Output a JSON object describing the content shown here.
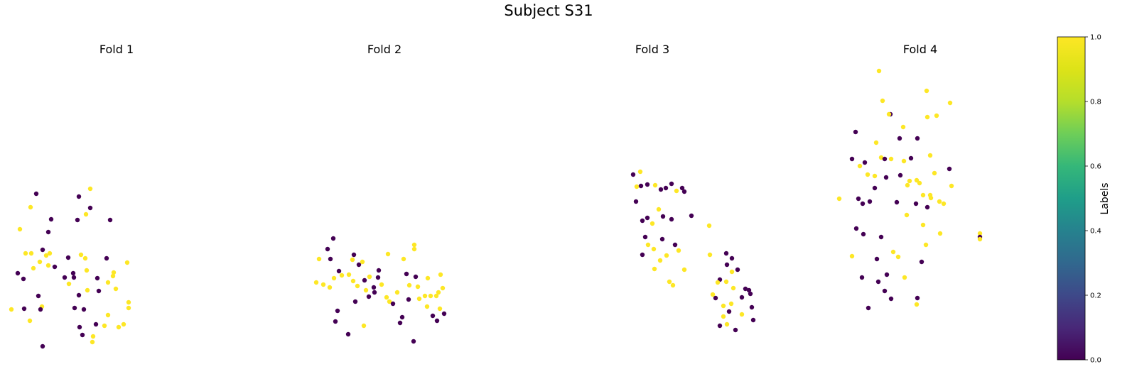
{
  "figure": {
    "title": "Subject S31"
  },
  "colors": {
    "label_0": "#440154",
    "label_1": "#fde725"
  },
  "colorbar": {
    "label": "Labels",
    "ticks": [
      "0.0",
      "0.2",
      "0.4",
      "0.6",
      "0.8",
      "1.0"
    ],
    "colormap": "viridis",
    "range": [
      0,
      1
    ]
  },
  "chart_data": [
    {
      "type": "scatter",
      "title": "Fold 1",
      "axes_visible": false,
      "x_range": [
        0,
        190
      ],
      "y_range": [
        0,
        430
      ],
      "points": [
        [
          51,
          254,
          0
        ],
        [
          43,
          235,
          1
        ],
        [
          111,
          250,
          0
        ],
        [
          127,
          261,
          1
        ],
        [
          28,
          204,
          1
        ],
        [
          72,
          218,
          0
        ],
        [
          109,
          217,
          0
        ],
        [
          121,
          225,
          1
        ],
        [
          127,
          234,
          0
        ],
        [
          155,
          217,
          0
        ],
        [
          36,
          170,
          1
        ],
        [
          44,
          170,
          1
        ],
        [
          65,
          167,
          1
        ],
        [
          70,
          170,
          1
        ],
        [
          25,
          142,
          0
        ],
        [
          33,
          134,
          0
        ],
        [
          47,
          149,
          1
        ],
        [
          56,
          158,
          1
        ],
        [
          68,
          153,
          1
        ],
        [
          77,
          151,
          0
        ],
        [
          96,
          164,
          0
        ],
        [
          103,
          142,
          0
        ],
        [
          114,
          168,
          1
        ],
        [
          122,
          146,
          1
        ],
        [
          150,
          163,
          0
        ],
        [
          160,
          143,
          1
        ],
        [
          179,
          157,
          1
        ],
        [
          54,
          110,
          0
        ],
        [
          59,
          95,
          1
        ],
        [
          34,
          92,
          0
        ],
        [
          16,
          91,
          1
        ],
        [
          42,
          75,
          1
        ],
        [
          57,
          91,
          0
        ],
        [
          105,
          93,
          0
        ],
        [
          111,
          111,
          0
        ],
        [
          118,
          91,
          0
        ],
        [
          123,
          118,
          1
        ],
        [
          139,
          117,
          0
        ],
        [
          152,
          129,
          1
        ],
        [
          163,
          120,
          1
        ],
        [
          112,
          66,
          0
        ],
        [
          116,
          55,
          0
        ],
        [
          131,
          53,
          1
        ],
        [
          135,
          70,
          0
        ],
        [
          147,
          68,
          1
        ],
        [
          152,
          83,
          1
        ],
        [
          167,
          66,
          1
        ],
        [
          174,
          70,
          1
        ],
        [
          181,
          101,
          1
        ],
        [
          181,
          93,
          1
        ],
        [
          91,
          136,
          0
        ],
        [
          97,
          127,
          1
        ],
        [
          104,
          136,
          0
        ],
        [
          137,
          135,
          0
        ],
        [
          159,
          138,
          1
        ],
        [
          68,
          200,
          0
        ],
        [
          60,
          175,
          0
        ],
        [
          120,
          163,
          1
        ],
        [
          60,
          39,
          0
        ],
        [
          130,
          45,
          1
        ]
      ]
    },
    {
      "type": "scatter",
      "title": "Fold 2",
      "axes_visible": false,
      "x_range": [
        0,
        190
      ],
      "y_range": [
        0,
        430
      ],
      "points": [
        [
          469,
          191,
          0
        ],
        [
          461,
          176,
          0
        ],
        [
          465,
          162,
          0
        ],
        [
          449,
          162,
          1
        ],
        [
          445,
          129,
          1
        ],
        [
          455,
          126,
          1
        ],
        [
          464,
          122,
          1
        ],
        [
          470,
          135,
          1
        ],
        [
          477,
          145,
          0
        ],
        [
          481,
          139,
          1
        ],
        [
          491,
          140,
          1
        ],
        [
          497,
          131,
          1
        ],
        [
          503,
          124,
          1
        ],
        [
          513,
          132,
          0
        ],
        [
          520,
          137,
          1
        ],
        [
          532,
          136,
          0
        ],
        [
          537,
          126,
          1
        ],
        [
          548,
          102,
          1
        ],
        [
          553,
          99,
          0
        ],
        [
          559,
          115,
          1
        ],
        [
          572,
          141,
          0
        ],
        [
          576,
          125,
          1
        ],
        [
          585,
          137,
          0
        ],
        [
          588,
          123,
          1
        ],
        [
          598,
          110,
          1
        ],
        [
          601,
          95,
          1
        ],
        [
          609,
          82,
          0
        ],
        [
          615,
          75,
          0
        ],
        [
          619,
          92,
          1
        ],
        [
          625,
          85,
          0
        ],
        [
          475,
          89,
          0
        ],
        [
          472,
          74,
          0
        ],
        [
          490,
          56,
          0
        ],
        [
          500,
          102,
          0
        ],
        [
          512,
          68,
          1
        ],
        [
          519,
          109,
          0
        ],
        [
          526,
          122,
          0
        ],
        [
          533,
          146,
          0
        ],
        [
          546,
          169,
          1
        ],
        [
          568,
          162,
          1
        ],
        [
          583,
          182,
          1
        ],
        [
          582,
          46,
          0
        ],
        [
          583,
          176,
          1
        ],
        [
          505,
          154,
          0
        ],
        [
          498,
          168,
          0
        ],
        [
          496,
          161,
          1
        ],
        [
          510,
          158,
          1
        ],
        [
          515,
          118,
          1
        ],
        [
          527,
          115,
          0
        ],
        [
          544,
          108,
          1
        ],
        [
          563,
          72,
          0
        ],
        [
          566,
          80,
          0
        ],
        [
          575,
          105,
          0
        ],
        [
          590,
          106,
          1
        ],
        [
          602,
          135,
          1
        ],
        [
          606,
          110,
          1
        ],
        [
          614,
          110,
          1
        ],
        [
          617,
          115,
          1
        ],
        [
          620,
          140,
          1
        ],
        [
          623,
          121,
          1
        ]
      ]
    },
    {
      "type": "scatter",
      "title": "Fold 3",
      "axes_visible": false,
      "x_range": [
        0,
        190
      ],
      "y_range": [
        0,
        430
      ],
      "points": [
        [
          891,
          281,
          0
        ],
        [
          901,
          285,
          1
        ],
        [
          896,
          264,
          1
        ],
        [
          902,
          265,
          0
        ],
        [
          911,
          267,
          0
        ],
        [
          922,
          266,
          1
        ],
        [
          930,
          260,
          0
        ],
        [
          937,
          262,
          0
        ],
        [
          945,
          268,
          0
        ],
        [
          952,
          258,
          1
        ],
        [
          960,
          262,
          0
        ],
        [
          963,
          257,
          0
        ],
        [
          973,
          223,
          0
        ],
        [
          895,
          243,
          0
        ],
        [
          904,
          216,
          0
        ],
        [
          911,
          220,
          0
        ],
        [
          918,
          212,
          1
        ],
        [
          927,
          232,
          1
        ],
        [
          933,
          222,
          0
        ],
        [
          945,
          218,
          0
        ],
        [
          908,
          193,
          0
        ],
        [
          912,
          182,
          1
        ],
        [
          920,
          176,
          1
        ],
        [
          932,
          190,
          0
        ],
        [
          938,
          167,
          1
        ],
        [
          955,
          174,
          1
        ],
        [
          950,
          182,
          0
        ],
        [
          963,
          147,
          1
        ],
        [
          929,
          160,
          1
        ],
        [
          904,
          168,
          0
        ],
        [
          921,
          148,
          1
        ],
        [
          942,
          130,
          1
        ],
        [
          947,
          125,
          1
        ],
        [
          998,
          209,
          1
        ],
        [
          999,
          168,
          1
        ],
        [
          1022,
          170,
          0
        ],
        [
          1030,
          163,
          0
        ],
        [
          1023,
          154,
          0
        ],
        [
          1038,
          147,
          0
        ],
        [
          1030,
          144,
          1
        ],
        [
          1013,
          133,
          0
        ],
        [
          1010,
          129,
          1
        ],
        [
          1022,
          130,
          1
        ],
        [
          1003,
          112,
          1
        ],
        [
          1007,
          107,
          0
        ],
        [
          1018,
          96,
          1
        ],
        [
          1029,
          99,
          1
        ],
        [
          1013,
          68,
          0
        ],
        [
          1023,
          70,
          1
        ],
        [
          1035,
          62,
          0
        ],
        [
          1049,
          120,
          0
        ],
        [
          1054,
          118,
          0
        ],
        [
          1056,
          113,
          0
        ],
        [
          1044,
          84,
          1
        ],
        [
          1060,
          76,
          0
        ],
        [
          1018,
          81,
          1
        ],
        [
          1026,
          88,
          0
        ],
        [
          1032,
          121,
          1
        ],
        [
          1044,
          108,
          0
        ],
        [
          1058,
          94,
          0
        ]
      ]
    },
    {
      "type": "scatter",
      "title": "Fold 4",
      "axes_visible": false,
      "x_range": [
        0,
        190
      ],
      "y_range": [
        0,
        430
      ],
      "points": [
        [
          1237,
          427,
          1
        ],
        [
          1242,
          385,
          1
        ],
        [
          1253,
          366,
          0
        ],
        [
          1251,
          366,
          1
        ],
        [
          1304,
          399,
          1
        ],
        [
          1337,
          382,
          1
        ],
        [
          1318,
          364,
          1
        ],
        [
          1305,
          362,
          1
        ],
        [
          1271,
          348,
          1
        ],
        [
          1204,
          341,
          0
        ],
        [
          1233,
          326,
          1
        ],
        [
          1266,
          332,
          0
        ],
        [
          1291,
          332,
          0
        ],
        [
          1199,
          303,
          0
        ],
        [
          1210,
          293,
          1
        ],
        [
          1217,
          298,
          0
        ],
        [
          1240,
          305,
          1
        ],
        [
          1245,
          303,
          0
        ],
        [
          1254,
          303,
          1
        ],
        [
          1272,
          300,
          1
        ],
        [
          1282,
          304,
          0
        ],
        [
          1309,
          308,
          1
        ],
        [
          1221,
          281,
          1
        ],
        [
          1231,
          279,
          1
        ],
        [
          1247,
          277,
          0
        ],
        [
          1267,
          280,
          0
        ],
        [
          1280,
          272,
          1
        ],
        [
          1290,
          273,
          1
        ],
        [
          1315,
          283,
          1
        ],
        [
          1336,
          289,
          0
        ],
        [
          1231,
          262,
          0
        ],
        [
          1277,
          266,
          1
        ],
        [
          1294,
          269,
          1
        ],
        [
          1299,
          252,
          1
        ],
        [
          1309,
          252,
          1
        ],
        [
          1339,
          265,
          1
        ],
        [
          1181,
          247,
          1
        ],
        [
          1208,
          247,
          0
        ],
        [
          1214,
          240,
          0
        ],
        [
          1224,
          243,
          0
        ],
        [
          1262,
          242,
          0
        ],
        [
          1289,
          240,
          0
        ],
        [
          1305,
          235,
          0
        ],
        [
          1310,
          248,
          1
        ],
        [
          1322,
          243,
          1
        ],
        [
          1328,
          240,
          1
        ],
        [
          1205,
          205,
          0
        ],
        [
          1215,
          197,
          0
        ],
        [
          1240,
          193,
          0
        ],
        [
          1276,
          224,
          1
        ],
        [
          1299,
          210,
          1
        ],
        [
          1323,
          198,
          1
        ],
        [
          1234,
          162,
          0
        ],
        [
          1264,
          165,
          1
        ],
        [
          1297,
          158,
          0
        ],
        [
          1303,
          182,
          1
        ],
        [
          1213,
          136,
          0
        ],
        [
          1236,
          130,
          0
        ],
        [
          1245,
          117,
          0
        ],
        [
          1273,
          136,
          1
        ],
        [
          1222,
          93,
          0
        ],
        [
          1254,
          106,
          0
        ],
        [
          1291,
          107,
          0
        ],
        [
          1379,
          198,
          1
        ],
        [
          1379,
          193,
          0
        ],
        [
          1379,
          190,
          1
        ],
        [
          1199,
          166,
          1
        ],
        [
          1290,
          98,
          1
        ],
        [
          1248,
          140,
          0
        ],
        [
          1257,
          172,
          1
        ]
      ]
    }
  ]
}
